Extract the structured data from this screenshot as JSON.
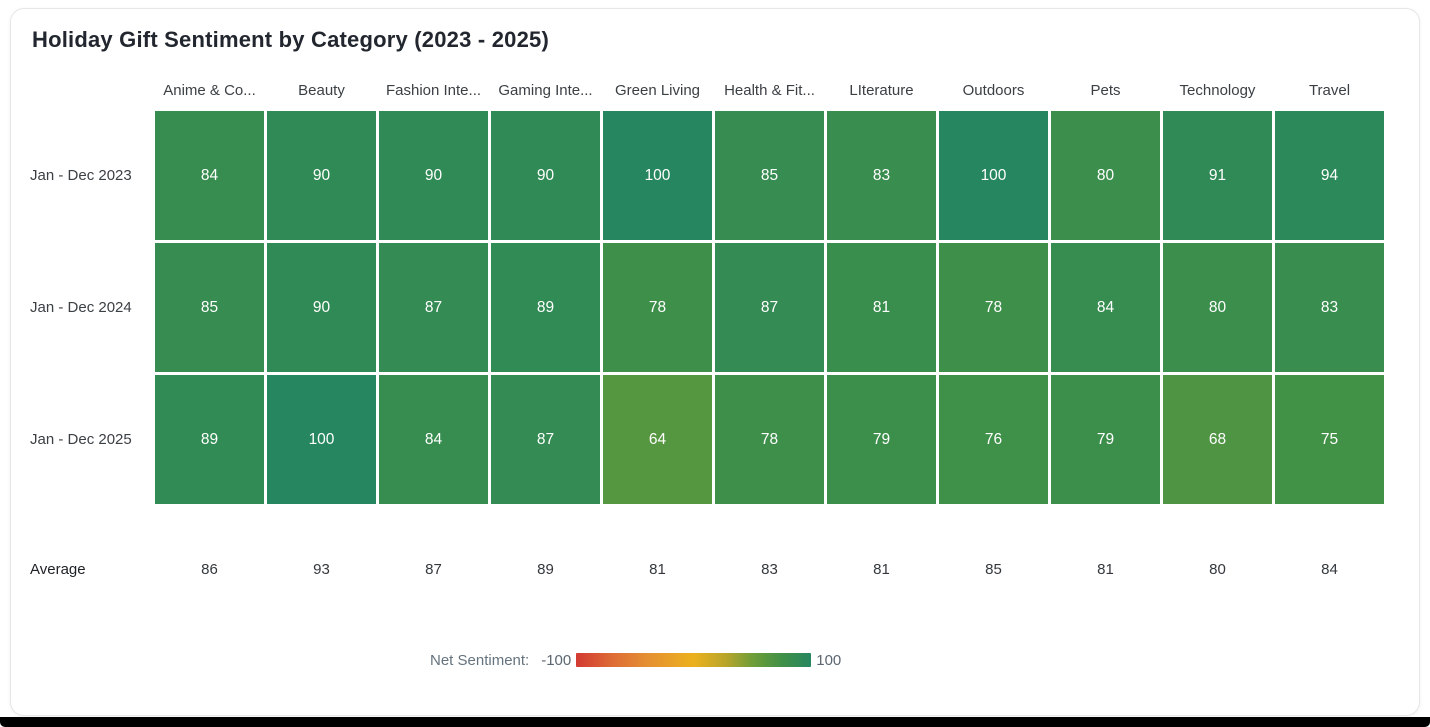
{
  "chart_data": {
    "type": "heatmap",
    "title": "Holiday Gift Sentiment by Category (2023 - 2025)",
    "categories": [
      "Anime & Co...",
      "Beauty",
      "Fashion Inte...",
      "Gaming Inte...",
      "Green Living",
      "Health & Fit...",
      "LIterature",
      "Outdoors",
      "Pets",
      "Technology",
      "Travel"
    ],
    "rows": [
      {
        "label": "Jan - Dec 2023",
        "values": [
          84,
          90,
          90,
          90,
          100,
          85,
          83,
          100,
          80,
          91,
          94
        ]
      },
      {
        "label": "Jan - Dec 2024",
        "values": [
          85,
          90,
          87,
          89,
          78,
          87,
          81,
          78,
          84,
          80,
          83
        ]
      },
      {
        "label": "Jan - Dec 2025",
        "values": [
          89,
          100,
          84,
          87,
          64,
          78,
          79,
          76,
          79,
          68,
          75
        ]
      }
    ],
    "average_row": {
      "label": "Average",
      "values": [
        86,
        93,
        87,
        89,
        81,
        83,
        81,
        85,
        81,
        80,
        84
      ]
    },
    "legend": {
      "label": "Net Sentiment:",
      "min_label": "-100",
      "max_label": "100"
    },
    "colormap": {
      "domain": [
        -100,
        100
      ],
      "stops": [
        {
          "pos": 0.0,
          "color": "#d23a32"
        },
        {
          "pos": 0.15,
          "color": "#dd6a35"
        },
        {
          "pos": 0.3,
          "color": "#e58f33"
        },
        {
          "pos": 0.5,
          "color": "#ecb11e"
        },
        {
          "pos": 0.64,
          "color": "#b7a52b"
        },
        {
          "pos": 0.75,
          "color": "#6f9d37"
        },
        {
          "pos": 0.88,
          "color": "#3f9048"
        },
        {
          "pos": 1.0,
          "color": "#26865f"
        }
      ]
    },
    "colors": {
      "cell_text": "#ffffff",
      "axis_text": "#3b4045",
      "average_text": "#33383d",
      "legend_text": "#65737e",
      "title_text": "#22262e"
    }
  }
}
